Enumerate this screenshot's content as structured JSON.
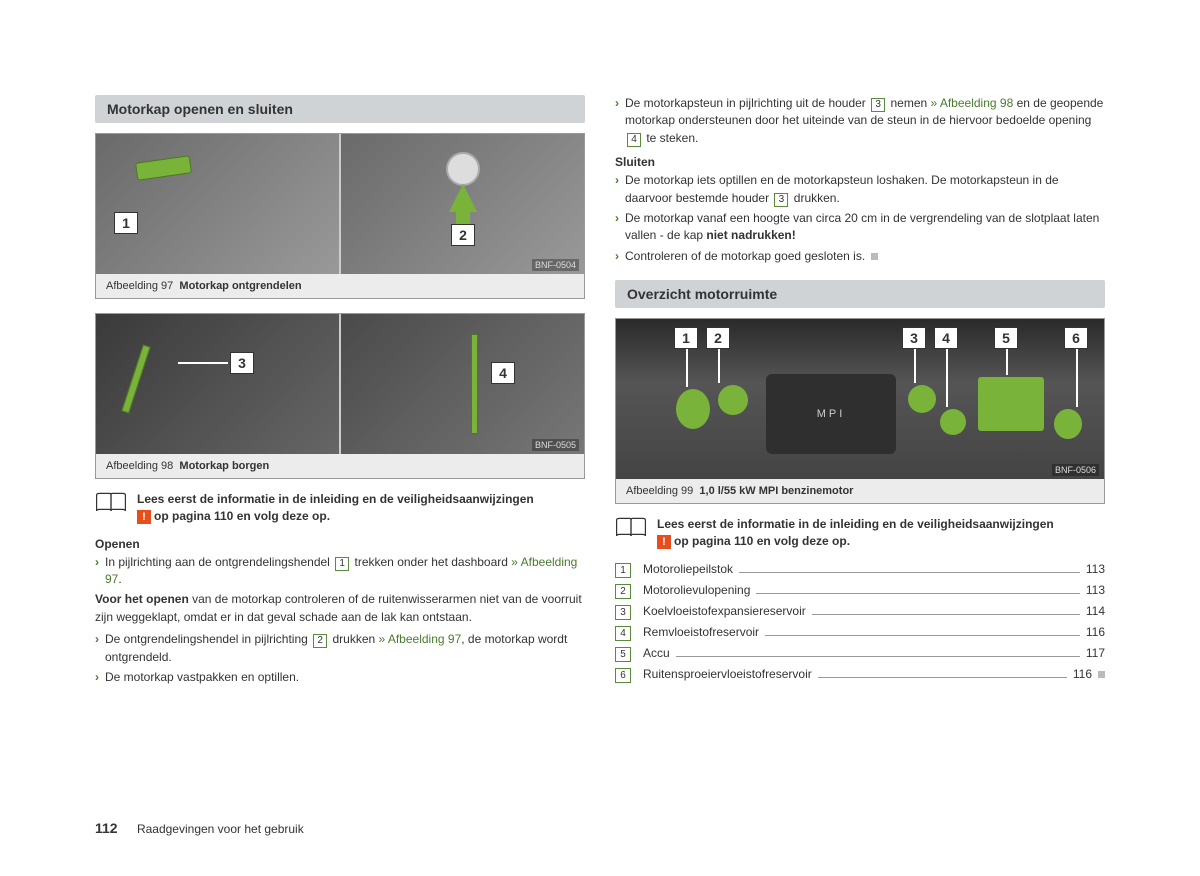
{
  "left": {
    "header": "Motorkap openen en sluiten",
    "fig97": {
      "caption_num": "Afbeelding 97",
      "caption_title": "Motorkap ontgrendelen",
      "code": "BNF-0504",
      "callouts": [
        "1",
        "2"
      ]
    },
    "fig98": {
      "caption_num": "Afbeelding 98",
      "caption_title": "Motorkap borgen",
      "code": "BNF-0505",
      "callouts": [
        "3",
        "4"
      ]
    },
    "info": {
      "line1": "Lees eerst de informatie in de inleiding en de veiligheidsaanwijzingen",
      "line2": "op pagina 110 en volg deze op."
    },
    "openen_head": "Openen",
    "openen_b1a": "In pijlrichting aan de ontgrendelingshendel ",
    "openen_b1_box": "1",
    "openen_b1b": " trekken onder het dash­board ",
    "openen_b1_ref": "» Afbeelding 97",
    "openen_b1c": ".",
    "para1": "Voor het openen van de motorkap controleren of de ruitenwisserarmen niet van de voorruit zijn weggeklapt, omdat er in dat geval schade aan de lak kan ont­staan.",
    "para1_bold": "Voor het openen",
    "b2a": "De ontgrendelingshendel in pijlrichting ",
    "b2_box": "2",
    "b2b": " drukken ",
    "b2_ref": "» Afbeelding 97",
    "b2c": ", de motor­kap wordt ontgrendeld.",
    "b3": "De motorkap vastpakken en optillen."
  },
  "right": {
    "top_b1a": "De motorkapsteun in pijlrichting uit de houder ",
    "top_b1_box": "3",
    "top_b1b": " nemen ",
    "top_b1_ref": "» Afbeelding 98",
    "top_b1c": " en de geopende motorkap ondersteunen door het uiteinde van de steun in de hier­voor bedoelde opening ",
    "top_b1_box2": "4",
    "top_b1d": " te steken.",
    "sluiten_head": "Sluiten",
    "s_b1a": "De motorkap iets optillen en de motorkapsteun loshaken. De motorkapsteun in de daarvoor bestemde houder ",
    "s_b1_box": "3",
    "s_b1b": " drukken.",
    "s_b2a": "De motorkap vanaf een hoogte van circa 20 cm in de vergrendeling van de slot­plaat laten vallen - de kap ",
    "s_b2_bold": "niet nadrukken!",
    "s_b3": "Controleren of de motorkap goed gesloten is.",
    "header": "Overzicht motorruimte",
    "fig99": {
      "caption_num": "Afbeelding 99",
      "caption_title": "1,0 l/55 kW MPI benzinemotor",
      "code": "BNF-0506",
      "callouts": [
        "1",
        "2",
        "3",
        "4",
        "5",
        "6"
      ]
    },
    "info": {
      "line1": "Lees eerst de informatie in de inleiding en de veiligheidsaanwijzingen",
      "line2": "op pagina 110 en volg deze op."
    },
    "toc": [
      {
        "n": "1",
        "label": "Motoroliepeilstok",
        "page": "113"
      },
      {
        "n": "2",
        "label": "Motorolievulopening",
        "page": "113"
      },
      {
        "n": "3",
        "label": "Koelvloeistofexpansiereservoir",
        "page": "114"
      },
      {
        "n": "4",
        "label": "Remvloeistofreservoir",
        "page": "116"
      },
      {
        "n": "5",
        "label": "Accu",
        "page": "117"
      },
      {
        "n": "6",
        "label": "Ruitensproeiervloeistofreservoir",
        "page": "116"
      }
    ]
  },
  "footer": {
    "page": "112",
    "chapter": "Raadgevingen voor het gebruik"
  }
}
